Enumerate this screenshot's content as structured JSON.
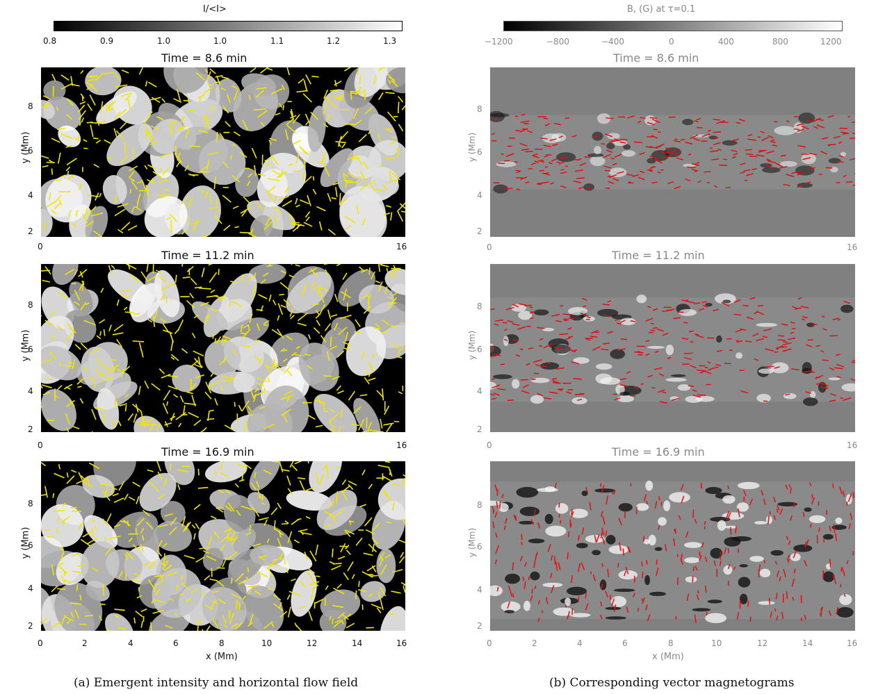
{
  "left_figure": {
    "colorbar_title": "I/<I>",
    "colorbar_ticks": [
      "0.8",
      "0.9",
      "1.0",
      "1.0",
      "1.1",
      "1.2",
      "1.3"
    ],
    "time_titles": [
      "Time =   8.6  min",
      "Time = 11.2 min",
      "Time = 16.9 min"
    ],
    "ylabel": "y (Mm)",
    "xlabel": "x (Mm)",
    "y_ticks": [
      "2",
      "4",
      "6",
      "8"
    ],
    "x_ticks_top": [
      "0",
      "16"
    ],
    "x_ticks_bottom": [
      "0",
      "2",
      "4",
      "6",
      "8",
      "10",
      "12",
      "14",
      "16"
    ],
    "caption": "(a) Emergent intensity and horizontal flow field",
    "arrow_color": "#f2e600"
  },
  "right_figure": {
    "colorbar_title": "B, (G) at τ=0.1",
    "colorbar_ticks": [
      "−1200",
      "−800",
      "−400",
      "0",
      "400",
      "800",
      "1200"
    ],
    "time_titles": [
      "Time =   8.6  min",
      "Time = 11.2 min",
      "Time = 16.9 min"
    ],
    "ylabel": "y (Mm)",
    "xlabel": "x (Mm)",
    "y_ticks": [
      "2",
      "4",
      "6",
      "8"
    ],
    "x_ticks_top": [
      "0",
      "16"
    ],
    "x_ticks_bottom": [
      "0",
      "2",
      "4",
      "6",
      "8",
      "10",
      "12",
      "14",
      "16"
    ],
    "caption": "(b) Corresponding vector magnetograms",
    "arrow_color": "#e01010",
    "background_color": "#808080"
  }
}
